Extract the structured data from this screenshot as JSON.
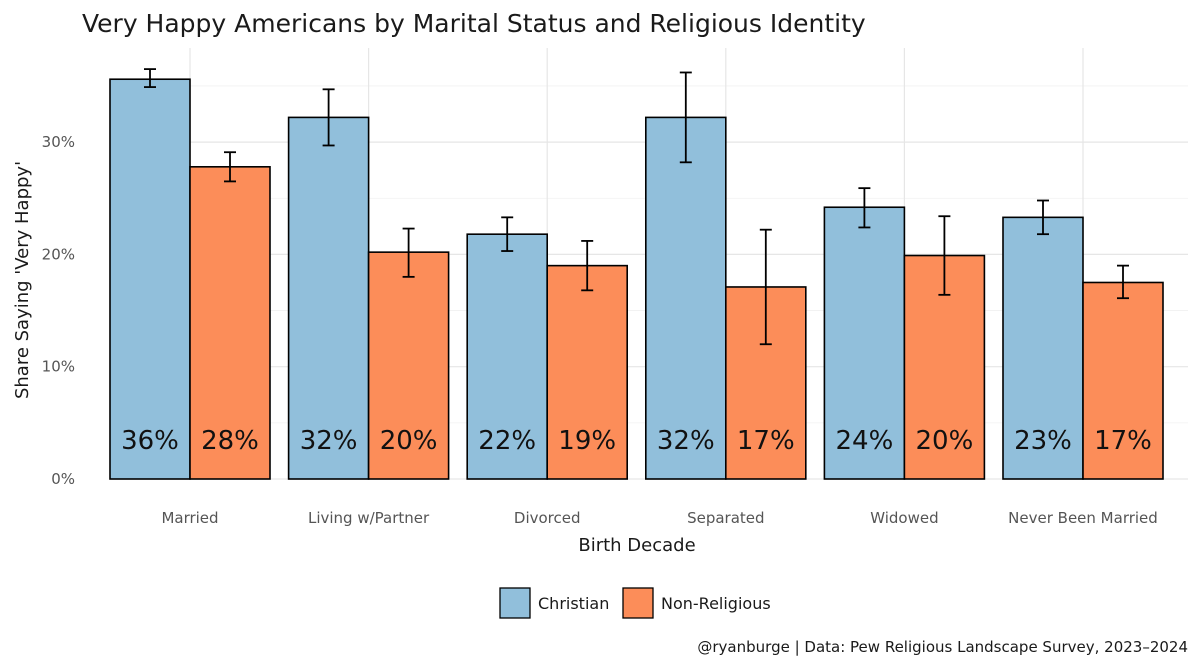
{
  "chart_data": {
    "type": "bar",
    "title": "Very Happy Americans by Marital Status and Religious Identity",
    "xlabel": "Birth Decade",
    "ylabel": "Share Saying 'Very Happy'",
    "ylim": [
      0,
      0.37
    ],
    "yticks": [
      0,
      0.1,
      0.2,
      0.3
    ],
    "ytick_labels": [
      "0%",
      "10%",
      "20%",
      "30%"
    ],
    "grid": true,
    "categories": [
      "Married",
      "Living w/Partner",
      "Divorced",
      "Separated",
      "Widowed",
      "Never Been Married"
    ],
    "series": [
      {
        "name": "Christian",
        "color": "#91bfdb",
        "values": [
          0.356,
          0.322,
          0.218,
          0.322,
          0.242,
          0.233
        ],
        "ci_low": [
          0.349,
          0.297,
          0.203,
          0.282,
          0.224,
          0.218
        ],
        "ci_high": [
          0.365,
          0.347,
          0.233,
          0.362,
          0.259,
          0.248
        ],
        "labels": [
          "36%",
          "32%",
          "22%",
          "32%",
          "24%",
          "23%"
        ]
      },
      {
        "name": "Non-Religious",
        "color": "#fc8d59",
        "values": [
          0.278,
          0.202,
          0.19,
          0.171,
          0.199,
          0.175
        ],
        "ci_low": [
          0.265,
          0.18,
          0.168,
          0.12,
          0.164,
          0.161
        ],
        "ci_high": [
          0.291,
          0.223,
          0.212,
          0.222,
          0.234,
          0.19
        ],
        "labels": [
          "28%",
          "20%",
          "19%",
          "17%",
          "20%",
          "17%"
        ]
      }
    ],
    "legend_position": "bottom",
    "caption": "@ryanburge | Data: Pew Religious Landscape Survey, 2023–2024"
  }
}
